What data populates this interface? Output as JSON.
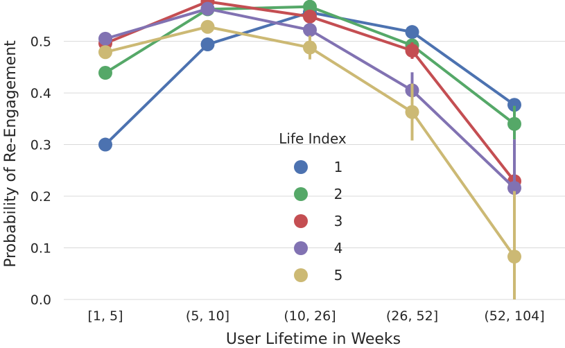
{
  "chart_data": {
    "type": "line",
    "title": "",
    "xlabel": "User Lifetime in Weeks",
    "ylabel": "Probability of Re-Engagement",
    "categories": [
      "[1, 5]",
      "(5, 10]",
      "(10, 26]",
      "(26, 52]",
      "(52, 104]"
    ],
    "ylim": [
      0.0,
      0.58
    ],
    "yticks": [
      "0.0",
      "0.1",
      "0.2",
      "0.3",
      "0.4",
      "0.5"
    ],
    "grid": "horizontal",
    "legend": {
      "title": "Life Index",
      "placement": "center-right"
    },
    "series": [
      {
        "name": "1",
        "color": "#4c72b0",
        "values": [
          0.3,
          0.494,
          0.556,
          0.518,
          0.377
        ],
        "err_low": [
          0.297,
          0.491,
          0.553,
          0.513,
          0.367
        ],
        "err_high": [
          0.303,
          0.497,
          0.559,
          0.523,
          0.387
        ]
      },
      {
        "name": "2",
        "color": "#55a868",
        "values": [
          0.439,
          0.562,
          0.567,
          0.492,
          0.34
        ],
        "err_low": [
          0.436,
          0.558,
          0.563,
          0.484,
          0.31
        ],
        "err_high": [
          0.442,
          0.566,
          0.571,
          0.5,
          0.375
        ]
      },
      {
        "name": "3",
        "color": "#c44e52",
        "values": [
          0.496,
          0.577,
          0.548,
          0.482,
          0.229
        ],
        "err_low": [
          0.492,
          0.572,
          0.541,
          0.466,
          0.175
        ],
        "err_high": [
          0.5,
          0.582,
          0.555,
          0.498,
          0.282
        ]
      },
      {
        "name": "4",
        "color": "#8172b2",
        "values": [
          0.505,
          0.563,
          0.522,
          0.405,
          0.216
        ],
        "err_low": [
          0.501,
          0.557,
          0.51,
          0.37,
          0.118
        ],
        "err_high": [
          0.509,
          0.569,
          0.534,
          0.44,
          0.31
        ]
      },
      {
        "name": "5",
        "color": "#ccb974",
        "values": [
          0.479,
          0.528,
          0.488,
          0.363,
          0.083
        ],
        "err_low": [
          0.475,
          0.515,
          0.465,
          0.308,
          0.0
        ],
        "err_high": [
          0.483,
          0.541,
          0.511,
          0.418,
          0.21
        ]
      }
    ]
  }
}
